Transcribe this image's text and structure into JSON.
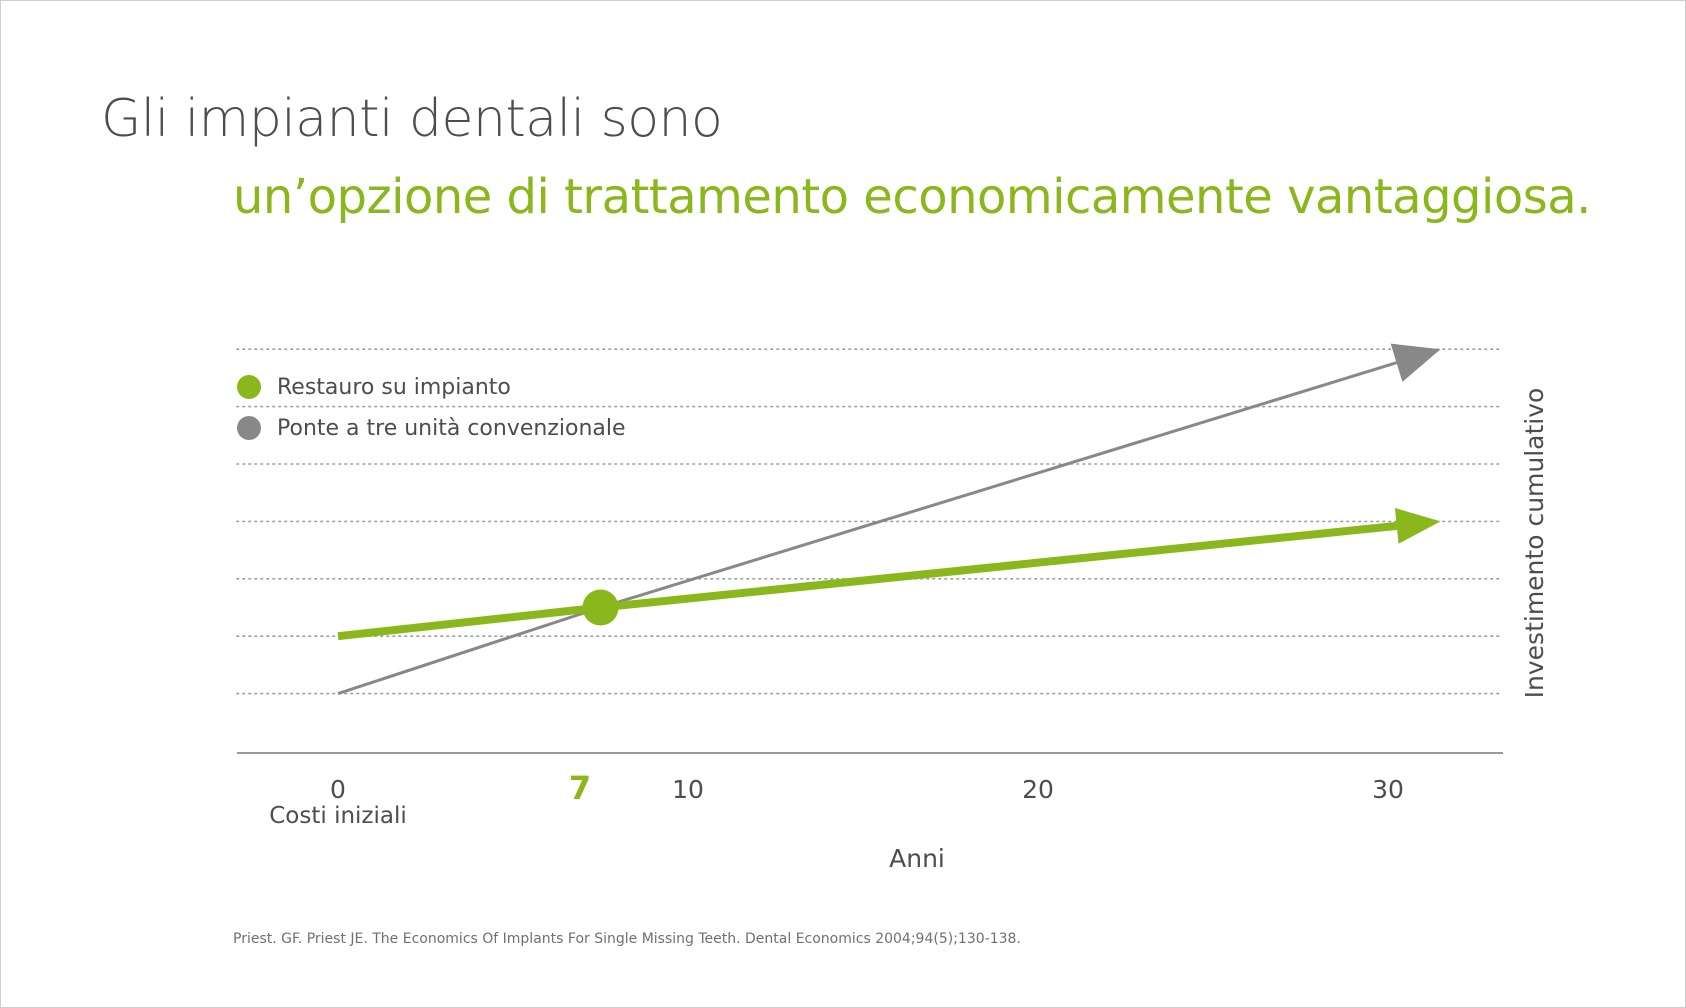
{
  "title_line1": "Gli impianti dentali sono",
  "title_line2": "un’opzione di trattamento economicamente vantaggiosa.",
  "citation": "Priest. GF. Priest JE. The Economics Of Implants For Single Missing Teeth. Dental Economics 2004;94(5);130-138.",
  "colors": {
    "green": "#8ab71b",
    "gray": "#888888",
    "text": "#4d4d4d"
  },
  "chart_data": {
    "type": "line",
    "title": "",
    "xlabel": "Anni",
    "ylabel": "Investimento cumulativo",
    "x_ticks": [
      0,
      10,
      20,
      30
    ],
    "x_tick_labels": [
      "0",
      "10",
      "20",
      "30"
    ],
    "x_origin_note": "Costi iniziali",
    "highlight_x": 7,
    "highlight_label": "7",
    "xlim": [
      -3,
      33
    ],
    "ylim": [
      0,
      7
    ],
    "grid_lines_y": [
      1,
      2,
      3,
      4,
      5,
      6,
      7
    ],
    "grid": true,
    "y_tick_labels": false,
    "legend_position": "top-left",
    "series": [
      {
        "name": "Restauro su impianto",
        "color": "#8ab71b",
        "x": [
          0,
          7.5,
          31.5
        ],
        "y": [
          2.0,
          2.5,
          4.0
        ],
        "arrow": true
      },
      {
        "name": "Ponte a tre unità convenzionale",
        "color": "#888888",
        "x": [
          0,
          7.5,
          31.5
        ],
        "y": [
          1.0,
          2.5,
          7.0
        ],
        "arrow": true
      }
    ],
    "intersection": {
      "x": 7.5,
      "y": 2.5
    }
  }
}
